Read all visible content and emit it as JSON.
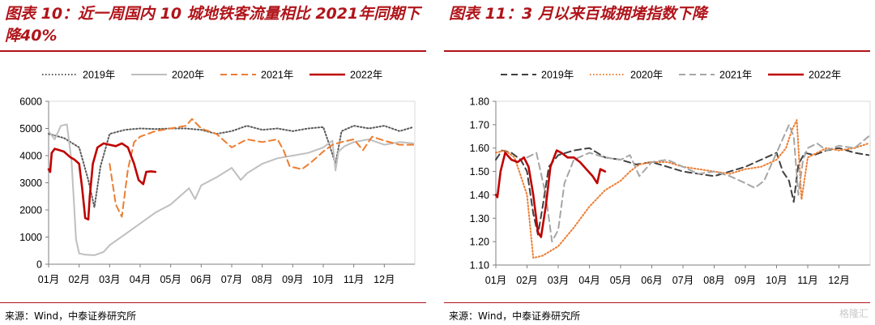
{
  "charts": [
    {
      "title": "图表 10：近一周国内 10 城地铁客流量相比 2021年同期下降40%",
      "source": "来源：Wind，中泰证券研究所",
      "chart_data": {
        "type": "line",
        "title": "图表 10：近一周国内 10 城地铁客流量相比 2021年同期下降40%",
        "xlabel": "",
        "ylabel": "",
        "ylim": [
          0,
          6000
        ],
        "yticks": [
          "0",
          "1000",
          "2000",
          "3000",
          "4000",
          "5000",
          "6000"
        ],
        "xticks": [
          "01月",
          "02月",
          "03月",
          "04月",
          "05月",
          "06月",
          "07月",
          "08月",
          "09月",
          "10月",
          "11月",
          "12月"
        ],
        "legend_position": "top",
        "grid": false,
        "series": [
          {
            "name": "2019年",
            "color": "#595959",
            "style": "dotted",
            "x": [
              0.0,
              0.5,
              1.0,
              1.3,
              1.5,
              1.7,
              2.0,
              2.5,
              3.0,
              3.5,
              4.0,
              4.5,
              5.0,
              5.5,
              6.0,
              6.5,
              7.0,
              7.5,
              8.0,
              8.5,
              9.0,
              9.2,
              9.4,
              9.6,
              10.0,
              10.5,
              11.0,
              11.5,
              11.95
            ],
            "y": [
              4800,
              4650,
              4300,
              3100,
              2100,
              3600,
              4800,
              4950,
              5000,
              4980,
              5000,
              5000,
              4950,
              4800,
              4900,
              5100,
              4950,
              5000,
              4900,
              5000,
              5050,
              4400,
              3700,
              4900,
              5100,
              5000,
              5100,
              4900,
              5050
            ]
          },
          {
            "name": "2020年",
            "color": "#bfbfbf",
            "style": "solid",
            "x": [
              0.0,
              0.2,
              0.4,
              0.6,
              0.75,
              0.9,
              1.0,
              1.2,
              1.5,
              1.8,
              2.0,
              2.5,
              3.0,
              3.5,
              4.0,
              4.3,
              4.6,
              4.8,
              5.0,
              5.5,
              6.0,
              6.3,
              6.5,
              7.0,
              7.5,
              8.0,
              8.5,
              9.0,
              9.3,
              9.4,
              9.5,
              9.7,
              10.0,
              10.5,
              11.0,
              11.5,
              11.95
            ],
            "y": [
              4900,
              4600,
              5100,
              5150,
              3800,
              900,
              400,
              350,
              330,
              450,
              700,
              1100,
              1500,
              1900,
              2200,
              2500,
              2800,
              2400,
              2900,
              3200,
              3550,
              3100,
              3350,
              3700,
              3900,
              4000,
              4100,
              4300,
              4550,
              3450,
              4150,
              4350,
              4500,
              4600,
              4400,
              4500,
              4450
            ]
          },
          {
            "name": "2021年",
            "color": "#ed7d31",
            "style": "dashed",
            "x": [
              2.0,
              2.2,
              2.4,
              2.6,
              2.8,
              3.0,
              3.5,
              4.0,
              4.5,
              4.7,
              5.0,
              5.5,
              6.0,
              6.5,
              7.0,
              7.5,
              7.7,
              7.9,
              8.3,
              8.6,
              9.0,
              9.3,
              9.6,
              10.0,
              10.3,
              10.6,
              11.0,
              11.5,
              11.95
            ],
            "y": [
              3700,
              2200,
              1750,
              3500,
              4500,
              4700,
              4900,
              5000,
              5100,
              5350,
              5000,
              4800,
              4300,
              4600,
              4500,
              4600,
              4200,
              3600,
              3500,
              3750,
              4150,
              4400,
              4500,
              4600,
              4200,
              4700,
              4550,
              4400,
              4400
            ]
          },
          {
            "name": "2022年",
            "color": "#c00000",
            "style": "solid",
            "x": [
              0.0,
              0.05,
              0.1,
              0.2,
              0.35,
              0.5,
              0.7,
              0.85,
              1.0,
              1.1,
              1.2,
              1.3,
              1.35,
              1.45,
              1.6,
              1.8,
              2.0,
              2.2,
              2.4,
              2.6,
              2.8,
              2.95,
              3.1,
              3.2,
              3.35,
              3.5
            ],
            "y": [
              3500,
              3400,
              4100,
              4250,
              4200,
              4150,
              3950,
              3850,
              3700,
              2800,
              1700,
              1650,
              2500,
              3700,
              4300,
              4450,
              4400,
              4350,
              4450,
              4300,
              3700,
              3100,
              2950,
              3400,
              3420,
              3400
            ]
          }
        ]
      }
    },
    {
      "title": "图表 11：3 月以来百城拥堵指数下降",
      "source": "来源：Wind，中泰证券研究所",
      "chart_data": {
        "type": "line",
        "title": "图表 11：3 月以来百城拥堵指数下降",
        "xlabel": "",
        "ylabel": "",
        "ylim": [
          1.1,
          1.8
        ],
        "yticks": [
          "1.10",
          "1.20",
          "1.30",
          "1.40",
          "1.50",
          "1.60",
          "1.70",
          "1.80"
        ],
        "xticks": [
          "01月",
          "02月",
          "03月",
          "04月",
          "05月",
          "06月",
          "07月",
          "08月",
          "09月",
          "10月",
          "11月",
          "12月"
        ],
        "legend_position": "top",
        "grid": false,
        "series": [
          {
            "name": "2019年",
            "color": "#404040",
            "style": "dashed",
            "x": [
              0.0,
              0.2,
              0.5,
              0.8,
              1.0,
              1.2,
              1.35,
              1.5,
              1.7,
              2.0,
              2.5,
              3.0,
              3.5,
              4.0,
              4.5,
              5.0,
              5.5,
              6.0,
              6.5,
              7.0,
              7.5,
              8.0,
              8.5,
              9.0,
              9.2,
              9.4,
              9.55,
              9.7,
              9.9,
              10.2,
              10.6,
              11.0,
              11.5,
              11.95
            ],
            "y": [
              1.55,
              1.59,
              1.58,
              1.55,
              1.5,
              1.32,
              1.23,
              1.35,
              1.52,
              1.57,
              1.59,
              1.6,
              1.56,
              1.55,
              1.53,
              1.54,
              1.52,
              1.5,
              1.49,
              1.48,
              1.5,
              1.52,
              1.55,
              1.58,
              1.5,
              1.46,
              1.37,
              1.53,
              1.58,
              1.57,
              1.59,
              1.6,
              1.58,
              1.57
            ]
          },
          {
            "name": "2020年",
            "color": "#ed7d31",
            "style": "dotted",
            "x": [
              0.0,
              0.3,
              0.6,
              0.8,
              1.0,
              1.2,
              1.5,
              2.0,
              2.5,
              3.0,
              3.5,
              4.0,
              4.3,
              4.6,
              5.0,
              5.5,
              6.0,
              6.5,
              7.0,
              7.5,
              8.0,
              8.5,
              9.0,
              9.3,
              9.5,
              9.65,
              9.8,
              10.0,
              10.3,
              10.6,
              11.0,
              11.5,
              11.95
            ],
            "y": [
              1.58,
              1.59,
              1.56,
              1.48,
              1.4,
              1.13,
              1.14,
              1.18,
              1.26,
              1.35,
              1.42,
              1.46,
              1.5,
              1.53,
              1.54,
              1.54,
              1.52,
              1.51,
              1.5,
              1.49,
              1.51,
              1.52,
              1.55,
              1.6,
              1.68,
              1.72,
              1.38,
              1.56,
              1.58,
              1.6,
              1.59,
              1.6,
              1.62
            ]
          },
          {
            "name": "2021年",
            "color": "#a6a6a6",
            "style": "dashed",
            "x": [
              1.0,
              1.3,
              1.6,
              1.8,
              2.0,
              2.2,
              2.5,
              3.0,
              3.5,
              4.0,
              4.3,
              4.6,
              5.0,
              5.5,
              6.0,
              6.5,
              7.0,
              7.5,
              8.0,
              8.3,
              8.6,
              9.0,
              9.2,
              9.4,
              9.55,
              9.7,
              9.85,
              10.0,
              10.3,
              10.6,
              11.0,
              11.5,
              11.95
            ],
            "y": [
              1.56,
              1.58,
              1.4,
              1.2,
              1.25,
              1.45,
              1.55,
              1.58,
              1.56,
              1.55,
              1.57,
              1.48,
              1.54,
              1.55,
              1.52,
              1.49,
              1.5,
              1.48,
              1.45,
              1.43,
              1.46,
              1.58,
              1.64,
              1.7,
              1.65,
              1.4,
              1.55,
              1.6,
              1.62,
              1.59,
              1.61,
              1.6,
              1.65
            ]
          },
          {
            "name": "2022年",
            "color": "#c00000",
            "style": "solid",
            "x": [
              0.0,
              0.05,
              0.15,
              0.3,
              0.5,
              0.7,
              0.9,
              1.05,
              1.2,
              1.35,
              1.45,
              1.6,
              1.75,
              1.95,
              2.1,
              2.3,
              2.5,
              2.7,
              2.9,
              3.1,
              3.25,
              3.35,
              3.5
            ],
            "y": [
              1.4,
              1.39,
              1.5,
              1.58,
              1.55,
              1.54,
              1.56,
              1.52,
              1.4,
              1.24,
              1.22,
              1.35,
              1.52,
              1.59,
              1.58,
              1.56,
              1.56,
              1.54,
              1.51,
              1.48,
              1.45,
              1.51,
              1.5
            ]
          }
        ]
      }
    }
  ],
  "watermark": "格隆汇"
}
